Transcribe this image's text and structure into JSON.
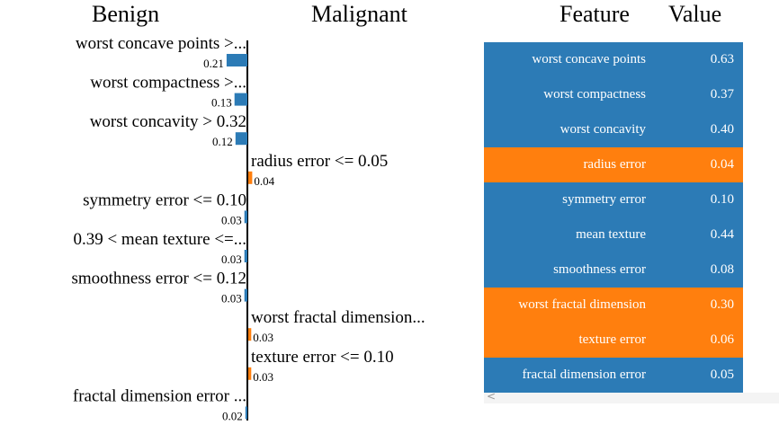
{
  "headers": {
    "benign": "Benign",
    "malignant": "Malignant",
    "feature": "Feature",
    "value": "Value"
  },
  "colors": {
    "benign": "#2c7bb6",
    "malignant": "#ff7f0e",
    "axis": "#000000"
  },
  "chart_data": {
    "type": "bar",
    "orientation": "horizontal",
    "class_names": [
      "Benign",
      "Malignant"
    ],
    "bars": [
      {
        "label": "worst concave points >...",
        "value": 0.21,
        "class": "Benign"
      },
      {
        "label": "worst compactness >...",
        "value": 0.13,
        "class": "Benign"
      },
      {
        "label": "worst concavity > 0.32",
        "value": 0.12,
        "class": "Benign"
      },
      {
        "label": "radius error <= 0.05",
        "value": 0.04,
        "class": "Malignant"
      },
      {
        "label": "symmetry error <= 0.10",
        "value": 0.03,
        "class": "Benign"
      },
      {
        "label": "0.39 < mean texture <=...",
        "value": 0.03,
        "class": "Benign"
      },
      {
        "label": "smoothness error <= 0.12",
        "value": 0.03,
        "class": "Benign"
      },
      {
        "label": "worst fractal dimension...",
        "value": 0.03,
        "class": "Malignant"
      },
      {
        "label": "texture error <= 0.10",
        "value": 0.03,
        "class": "Malignant"
      },
      {
        "label": "fractal dimension error ...",
        "value": 0.02,
        "class": "Benign"
      }
    ]
  },
  "table": {
    "rows": [
      {
        "feature": "worst concave points",
        "value": "0.63",
        "class": "Benign"
      },
      {
        "feature": "worst compactness",
        "value": "0.37",
        "class": "Benign"
      },
      {
        "feature": "worst concavity",
        "value": "0.40",
        "class": "Benign"
      },
      {
        "feature": "radius error",
        "value": "0.04",
        "class": "Malignant"
      },
      {
        "feature": "symmetry error",
        "value": "0.10",
        "class": "Benign"
      },
      {
        "feature": "mean texture",
        "value": "0.44",
        "class": "Benign"
      },
      {
        "feature": "smoothness error",
        "value": "0.08",
        "class": "Benign"
      },
      {
        "feature": "worst fractal dimension",
        "value": "0.30",
        "class": "Malignant"
      },
      {
        "feature": "texture error",
        "value": "0.06",
        "class": "Malignant"
      },
      {
        "feature": "fractal dimension error",
        "value": "0.05",
        "class": "Benign"
      }
    ]
  },
  "scrollbar": {
    "left_arrow": "<"
  }
}
